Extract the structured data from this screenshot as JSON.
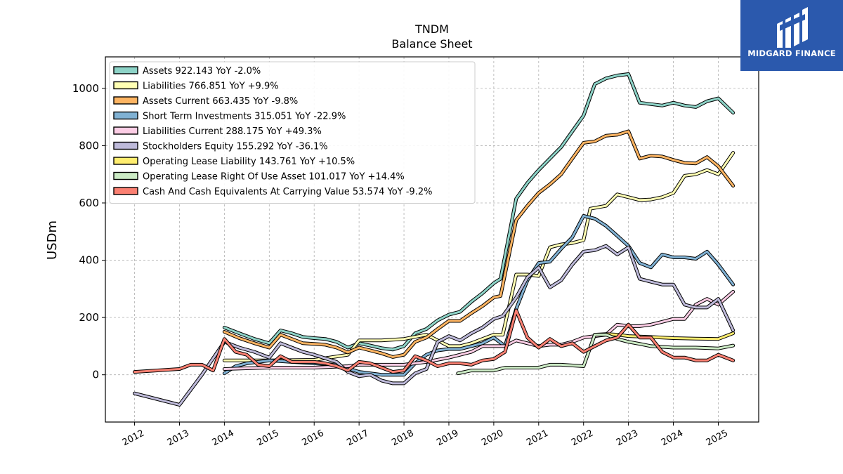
{
  "brand": {
    "name": "MIDGARD FINANCE",
    "logo_icon": "midgard-logo-icon",
    "color": "#2b59ad"
  },
  "chart_data": {
    "type": "line",
    "title": "TNDM",
    "subtitle": "Balance  Sheet",
    "ylabel": "USDm",
    "xlabel": "",
    "ylim": [
      -165,
      1110
    ],
    "xlim": [
      2011.35,
      2025.9
    ],
    "yticks": [
      0,
      200,
      400,
      600,
      800,
      1000
    ],
    "xticks": [
      "2012",
      "2013",
      "2014",
      "2015",
      "2016",
      "2017",
      "2018",
      "2019",
      "2020",
      "2021",
      "2022",
      "2023",
      "2024",
      "2025"
    ],
    "grid": true,
    "legend_position": "top-left",
    "series": [
      {
        "name": "Assets",
        "legend": "Assets  922.143 YoY -2.0%",
        "color": "#8dd3c7",
        "x": [
          2014.0,
          2014.33,
          2014.67,
          2015.0,
          2015.25,
          2015.5,
          2015.75,
          2016.0,
          2016.25,
          2016.5,
          2016.75,
          2017.0,
          2017.25,
          2017.5,
          2017.75,
          2018.0,
          2018.25,
          2018.5,
          2018.75,
          2019.0,
          2019.25,
          2019.5,
          2019.75,
          2020.0,
          2020.15,
          2020.5,
          2020.75,
          2021.0,
          2021.25,
          2021.5,
          2021.75,
          2022.0,
          2022.25,
          2022.5,
          2022.75,
          2023.0,
          2023.25,
          2023.5,
          2023.75,
          2024.0,
          2024.25,
          2024.5,
          2024.75,
          2025.0,
          2025.33
        ],
        "y": [
          165,
          145,
          125,
          110,
          155,
          145,
          132,
          128,
          125,
          115,
          95,
          110,
          102,
          93,
          88,
          100,
          145,
          160,
          190,
          210,
          220,
          255,
          285,
          320,
          335,
          615,
          670,
          715,
          755,
          795,
          850,
          905,
          1015,
          1035,
          1045,
          1050,
          950,
          945,
          940,
          950,
          940,
          935,
          955,
          965,
          915
        ]
      },
      {
        "name": "Liabilities",
        "legend": "Liabilities  766.851 YoY +9.9%",
        "color": "#ffffb3",
        "x": [
          2014.0,
          2015.0,
          2016.0,
          2016.75,
          2017.0,
          2017.5,
          2018.0,
          2018.5,
          2019.0,
          2019.25,
          2019.5,
          2019.75,
          2020.0,
          2020.2,
          2020.5,
          2020.75,
          2021.0,
          2021.25,
          2021.5,
          2021.75,
          2022.0,
          2022.15,
          2022.5,
          2022.75,
          2023.0,
          2023.25,
          2023.5,
          2023.75,
          2024.0,
          2024.25,
          2024.5,
          2024.75,
          2025.0,
          2025.33
        ],
        "y": [
          50,
          50,
          52,
          70,
          120,
          120,
          125,
          140,
          100,
          100,
          110,
          125,
          140,
          140,
          350,
          350,
          345,
          445,
          455,
          460,
          470,
          580,
          590,
          630,
          620,
          610,
          612,
          620,
          635,
          695,
          700,
          715,
          700,
          775
        ]
      },
      {
        "name": "Assets Current",
        "legend": "Assets Current  663.435 YoY -9.8%",
        "color": "#fdb462",
        "x": [
          2014.0,
          2014.33,
          2014.67,
          2015.0,
          2015.25,
          2015.5,
          2015.75,
          2016.0,
          2016.25,
          2016.5,
          2016.75,
          2017.0,
          2017.25,
          2017.5,
          2017.75,
          2018.0,
          2018.25,
          2018.5,
          2018.75,
          2019.0,
          2019.25,
          2019.5,
          2019.75,
          2020.0,
          2020.15,
          2020.5,
          2020.75,
          2021.0,
          2021.25,
          2021.5,
          2021.75,
          2022.0,
          2022.25,
          2022.5,
          2022.75,
          2023.0,
          2023.25,
          2023.5,
          2023.75,
          2024.0,
          2024.25,
          2024.5,
          2024.75,
          2025.0,
          2025.33
        ],
        "y": [
          150,
          128,
          110,
          95,
          140,
          125,
          110,
          108,
          105,
          95,
          78,
          95,
          85,
          75,
          62,
          70,
          115,
          130,
          160,
          188,
          188,
          215,
          240,
          270,
          275,
          540,
          590,
          635,
          665,
          700,
          755,
          810,
          815,
          835,
          838,
          850,
          755,
          765,
          762,
          750,
          740,
          738,
          760,
          728,
          660
        ]
      },
      {
        "name": "Short Term Investments",
        "legend": "Short Term Investments  315.051 YoY -22.9%",
        "color": "#80b1d3",
        "x": [
          2014.0,
          2014.25,
          2014.5,
          2014.75,
          2015.0,
          2015.5,
          2016.0,
          2016.5,
          2017.0,
          2017.5,
          2018.0,
          2018.25,
          2018.5,
          2018.75,
          2019.0,
          2019.25,
          2019.5,
          2019.75,
          2020.0,
          2020.25,
          2020.5,
          2020.75,
          2021.0,
          2021.25,
          2021.5,
          2021.75,
          2022.0,
          2022.25,
          2022.5,
          2022.75,
          2023.0,
          2023.25,
          2023.5,
          2023.75,
          2024.0,
          2024.25,
          2024.5,
          2024.75,
          2025.0,
          2025.33
        ],
        "y": [
          5,
          30,
          40,
          45,
          50,
          45,
          40,
          35,
          10,
          0,
          0,
          40,
          70,
          85,
          90,
          90,
          100,
          110,
          130,
          100,
          230,
          330,
          390,
          395,
          440,
          480,
          555,
          545,
          520,
          485,
          450,
          390,
          375,
          420,
          410,
          410,
          405,
          430,
          385,
          315
        ]
      },
      {
        "name": "Liabilities Current",
        "legend": "Liabilities Current  288.175 YoY +49.3%",
        "color": "#fccde5",
        "x": [
          2014.0,
          2015.0,
          2016.0,
          2016.75,
          2017.0,
          2017.5,
          2018.0,
          2018.5,
          2019.0,
          2019.25,
          2019.5,
          2019.75,
          2020.0,
          2020.25,
          2020.5,
          2020.75,
          2021.0,
          2021.25,
          2021.5,
          2021.75,
          2022.0,
          2022.25,
          2022.5,
          2022.75,
          2023.0,
          2023.25,
          2023.5,
          2023.75,
          2024.0,
          2024.25,
          2024.5,
          2024.75,
          2025.0,
          2025.33
        ],
        "y": [
          20,
          25,
          25,
          30,
          35,
          35,
          35,
          45,
          60,
          70,
          80,
          100,
          100,
          100,
          120,
          110,
          100,
          105,
          105,
          115,
          130,
          135,
          140,
          175,
          170,
          170,
          175,
          185,
          195,
          195,
          245,
          265,
          245,
          290
        ]
      },
      {
        "name": "Stockholders Equity",
        "legend": "Stockholders Equity  155.292 YoY -36.1%",
        "color": "#bebada",
        "x": [
          2012.0,
          2013.0,
          2013.5,
          2014.0,
          2014.33,
          2014.67,
          2015.0,
          2015.25,
          2015.5,
          2015.75,
          2016.0,
          2016.5,
          2016.75,
          2017.0,
          2017.25,
          2017.5,
          2017.75,
          2018.0,
          2018.25,
          2018.5,
          2018.75,
          2019.0,
          2019.25,
          2019.5,
          2019.75,
          2020.0,
          2020.2,
          2020.5,
          2020.75,
          2021.0,
          2021.25,
          2021.5,
          2021.75,
          2022.0,
          2022.25,
          2022.5,
          2022.75,
          2023.0,
          2023.25,
          2023.5,
          2023.75,
          2024.0,
          2024.25,
          2024.5,
          2024.75,
          2025.0,
          2025.33
        ],
        "y": [
          -65,
          -105,
          0,
          115,
          95,
          80,
          60,
          110,
          95,
          80,
          70,
          45,
          10,
          -5,
          0,
          -20,
          -30,
          -30,
          5,
          20,
          115,
          135,
          120,
          145,
          165,
          195,
          205,
          270,
          340,
          375,
          305,
          330,
          385,
          430,
          435,
          450,
          420,
          445,
          335,
          325,
          315,
          315,
          245,
          235,
          235,
          265,
          155
        ]
      },
      {
        "name": "Operating Lease Liability",
        "legend": "Operating Lease Liability  143.761 YoY +10.5%",
        "color": "#ffed6f",
        "x": [
          2022.25,
          2022.5,
          2022.75,
          2023.0,
          2023.5,
          2024.0,
          2024.5,
          2025.0,
          2025.33
        ],
        "y": [
          140,
          142,
          140,
          135,
          132,
          128,
          126,
          125,
          145
        ]
      },
      {
        "name": "Operating Lease Right Of Use Asset",
        "legend": "Operating Lease Right Of Use Asset  101.017 YoY +14.4%",
        "color": "#ccebc5",
        "x": [
          2019.2,
          2019.5,
          2020.0,
          2020.25,
          2020.5,
          2021.0,
          2021.25,
          2021.5,
          2022.0,
          2022.25,
          2022.5,
          2022.75,
          2023.0,
          2023.25,
          2023.5,
          2024.0,
          2024.5,
          2025.0,
          2025.33
        ],
        "y": [
          5,
          15,
          15,
          25,
          25,
          25,
          35,
          35,
          30,
          140,
          140,
          125,
          115,
          108,
          100,
          95,
          95,
          92,
          102
        ]
      },
      {
        "name": "Cash And Cash Equivalents At Carrying Value",
        "legend": "Cash And Cash Equivalents At Carrying Value  53.574 YoY -9.2%",
        "color": "#fb8072",
        "x": [
          2012.0,
          2013.0,
          2013.25,
          2013.5,
          2013.75,
          2014.0,
          2014.25,
          2014.5,
          2014.75,
          2015.0,
          2015.25,
          2015.5,
          2015.75,
          2016.0,
          2016.25,
          2016.5,
          2016.75,
          2017.0,
          2017.25,
          2017.5,
          2017.75,
          2018.0,
          2018.25,
          2018.5,
          2018.75,
          2019.0,
          2019.25,
          2019.5,
          2019.75,
          2020.0,
          2020.25,
          2020.5,
          2020.75,
          2021.0,
          2021.25,
          2021.5,
          2021.75,
          2022.0,
          2022.25,
          2022.5,
          2022.75,
          2023.0,
          2023.25,
          2023.5,
          2023.75,
          2024.0,
          2024.25,
          2024.5,
          2024.75,
          2025.0,
          2025.33
        ],
        "y": [
          10,
          20,
          35,
          35,
          15,
          125,
          80,
          70,
          35,
          30,
          65,
          45,
          45,
          45,
          40,
          30,
          15,
          45,
          40,
          25,
          10,
          15,
          65,
          50,
          30,
          40,
          40,
          35,
          50,
          55,
          80,
          225,
          130,
          95,
          125,
          100,
          110,
          80,
          100,
          120,
          130,
          175,
          130,
          130,
          80,
          60,
          60,
          50,
          50,
          70,
          50
        ]
      }
    ]
  }
}
